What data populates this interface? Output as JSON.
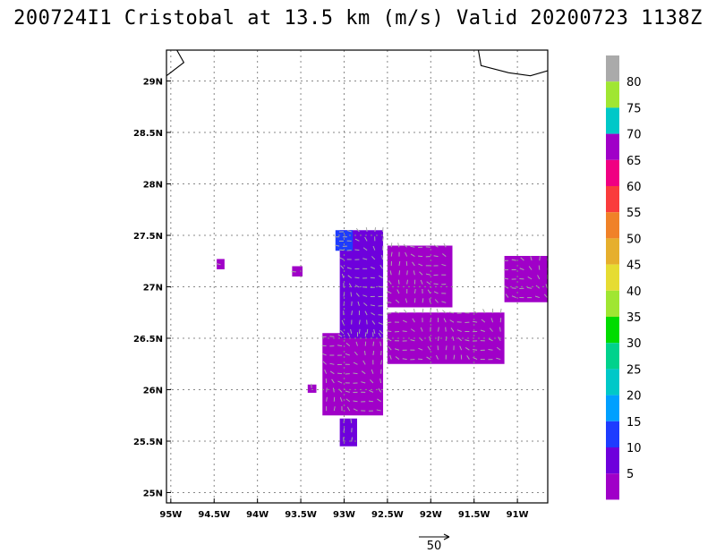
{
  "chart_data": {
    "type": "heatmap",
    "title": "200724I1 Cristobal at 13.5 km (m/s) Valid 20200723 1138Z",
    "x_ticks": [
      "95W",
      "94.5W",
      "94W",
      "93.5W",
      "93W",
      "92.5W",
      "92W",
      "91.5W",
      "91W"
    ],
    "x_tick_values": [
      -95.0,
      -94.5,
      -94.0,
      -93.5,
      -93.0,
      -92.5,
      -92.0,
      -91.5,
      -91.0
    ],
    "y_ticks": [
      "25N",
      "25.5N",
      "26N",
      "26.5N",
      "27N",
      "27.5N",
      "28N",
      "28.5N",
      "29N"
    ],
    "y_tick_values": [
      25.0,
      25.5,
      26.0,
      26.5,
      27.0,
      27.5,
      28.0,
      28.5,
      29.0
    ],
    "xlim": [
      -95.05,
      -90.65
    ],
    "ylim": [
      24.9,
      29.3
    ],
    "grid": true,
    "colorbar": {
      "labels": [
        "5",
        "10",
        "15",
        "20",
        "25",
        "30",
        "35",
        "40",
        "45",
        "50",
        "55",
        "60",
        "65",
        "70",
        "75",
        "80"
      ],
      "colors": [
        "#a000c8",
        "#6e00dc",
        "#1e3cff",
        "#00a0ff",
        "#00c8c8",
        "#00d28c",
        "#00dc00",
        "#a0e632",
        "#e6dc32",
        "#e6af2d",
        "#f08228",
        "#fa3c3c",
        "#f00082",
        "#a000c8",
        "#00c8c8",
        "#a0e632",
        "#aaaaaa"
      ]
    },
    "wind_field_regions": [
      {
        "name": "main-body",
        "lon_range": [
          -93.25,
          -92.55
        ],
        "lat_range": [
          25.75,
          26.55
        ],
        "speed_ms": 5
      },
      {
        "name": "north-tongue",
        "lon_range": [
          -93.05,
          -92.55
        ],
        "lat_range": [
          26.5,
          27.55
        ],
        "speed_ms": 10
      },
      {
        "name": "northeast-band",
        "lon_range": [
          -92.5,
          -91.75
        ],
        "lat_range": [
          26.8,
          27.4
        ],
        "speed_ms": 5
      },
      {
        "name": "east-arm",
        "lon_range": [
          -92.5,
          -91.15
        ],
        "lat_range": [
          26.25,
          26.75
        ],
        "speed_ms": 5
      },
      {
        "name": "east-cell",
        "lon_range": [
          -91.15,
          -90.65
        ],
        "lat_range": [
          26.85,
          27.3
        ],
        "speed_ms": 5
      },
      {
        "name": "northwest-core",
        "lon_range": [
          -93.1,
          -92.9
        ],
        "lat_range": [
          27.35,
          27.55
        ],
        "speed_ms": 15
      }
    ],
    "reference_vector": {
      "label": "50",
      "value_ms": 50
    }
  }
}
